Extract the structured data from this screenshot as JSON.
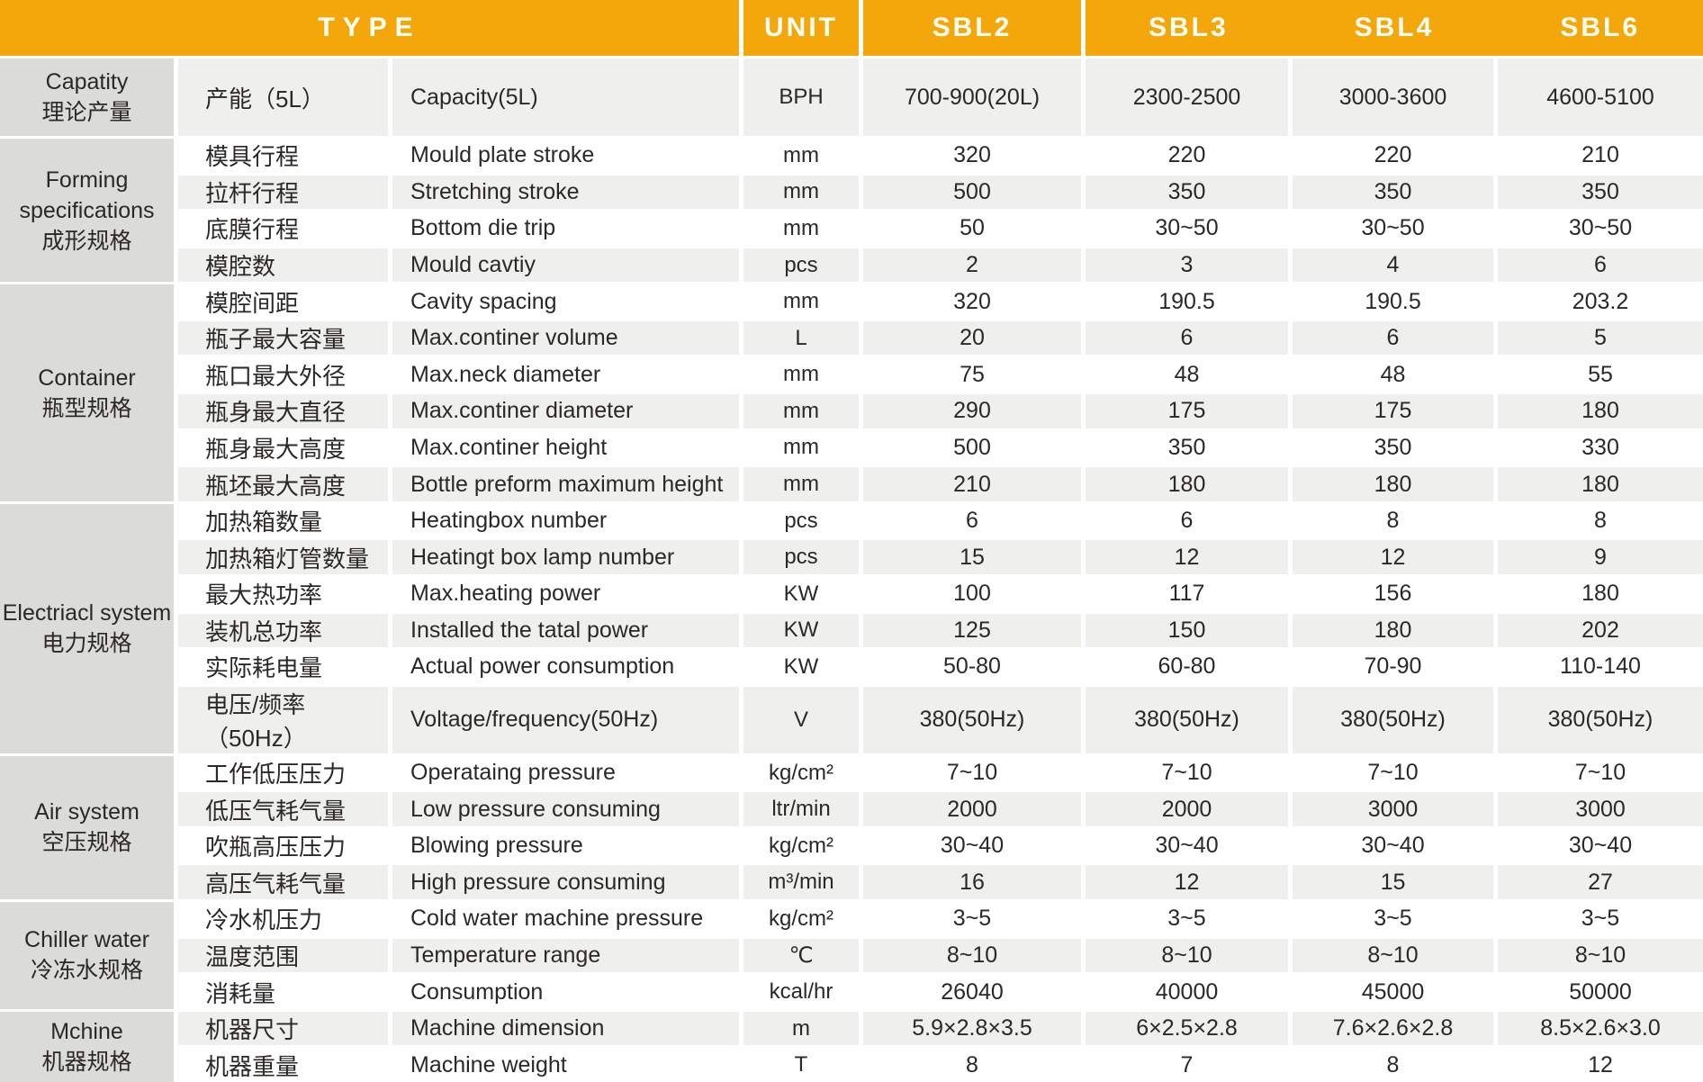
{
  "table": {
    "header": {
      "type_label": "TYPE",
      "unit_label": "UNIT",
      "models": [
        "SBL2",
        "SBL3",
        "SBL4",
        "SBL6"
      ]
    },
    "groups": [
      {
        "name_en": "Capatity",
        "name_cn": "理论产量",
        "rows": [
          {
            "cn": "产能（5L）",
            "en": "Capacity(5L)",
            "unit": "BPH",
            "values": [
              "700-900(20L)",
              "2300-2500",
              "3000-3600",
              "4600-5100"
            ]
          }
        ]
      },
      {
        "name_en": "Forming specifications",
        "name_cn": "成形规格",
        "rows": [
          {
            "cn": "模具行程",
            "en": "Mould plate stroke",
            "unit": "mm",
            "values": [
              "320",
              "220",
              "220",
              "210"
            ]
          },
          {
            "cn": "拉杆行程",
            "en": "Stretching stroke",
            "unit": "mm",
            "values": [
              "500",
              "350",
              "350",
              "350"
            ]
          },
          {
            "cn": "底膜行程",
            "en": "Bottom die trip",
            "unit": "mm",
            "values": [
              "50",
              "30~50",
              "30~50",
              "30~50"
            ]
          },
          {
            "cn": "模腔数",
            "en": "Mould cavtiy",
            "unit": "pcs",
            "values": [
              "2",
              "3",
              "4",
              "6"
            ]
          }
        ]
      },
      {
        "name_en": "Container",
        "name_cn": "瓶型规格",
        "rows": [
          {
            "cn": "模腔间距",
            "en": "Cavity spacing",
            "unit": "mm",
            "values": [
              "320",
              "190.5",
              "190.5",
              "203.2"
            ]
          },
          {
            "cn": "瓶子最大容量",
            "en": "Max.continer volume",
            "unit": "L",
            "values": [
              "20",
              "6",
              "6",
              "5"
            ]
          },
          {
            "cn": "瓶口最大外径",
            "en": "Max.neck diameter",
            "unit": "mm",
            "values": [
              "75",
              "48",
              "48",
              "55"
            ]
          },
          {
            "cn": "瓶身最大直径",
            "en": "Max.continer diameter",
            "unit": "mm",
            "values": [
              "290",
              "175",
              "175",
              "180"
            ]
          },
          {
            "cn": "瓶身最大高度",
            "en": "Max.continer height",
            "unit": "mm",
            "values": [
              "500",
              "350",
              "350",
              "330"
            ]
          },
          {
            "cn": "瓶坯最大高度",
            "en": "Bottle preform maximum height",
            "unit": "mm",
            "values": [
              "210",
              "180",
              "180",
              "180"
            ]
          }
        ]
      },
      {
        "name_en": "Electriacl system",
        "name_cn": "电力规格",
        "rows": [
          {
            "cn": "加热箱数量",
            "en": "Heatingbox number",
            "unit": "pcs",
            "values": [
              "6",
              "6",
              "8",
              "8"
            ]
          },
          {
            "cn": "加热箱灯管数量",
            "en": "Heatingt box lamp number",
            "unit": "pcs",
            "values": [
              "15",
              "12",
              "12",
              "9"
            ]
          },
          {
            "cn": "最大热功率",
            "en": "Max.heating power",
            "unit": "KW",
            "values": [
              "100",
              "117",
              "156",
              "180"
            ]
          },
          {
            "cn": "装机总功率",
            "en": "Installed the tatal power",
            "unit": "KW",
            "values": [
              "125",
              "150",
              "180",
              "202"
            ]
          },
          {
            "cn": "实际耗电量",
            "en": "Actual power consumption",
            "unit": "KW",
            "values": [
              "50-80",
              "60-80",
              "70-90",
              "110-140"
            ]
          },
          {
            "cn": "电压/频率（50Hz）",
            "en": "Voltage/frequency(50Hz)",
            "unit": "V",
            "values": [
              "380(50Hz)",
              "380(50Hz)",
              "380(50Hz)",
              "380(50Hz)"
            ]
          }
        ]
      },
      {
        "name_en": "Air system",
        "name_cn": "空压规格",
        "rows": [
          {
            "cn": "工作低压压力",
            "en": "Operataing pressure",
            "unit": "kg/cm²",
            "values": [
              "7~10",
              "7~10",
              "7~10",
              "7~10"
            ]
          },
          {
            "cn": "低压气耗气量",
            "en": "Low pressure consuming",
            "unit": "ltr/min",
            "values": [
              "2000",
              "2000",
              "3000",
              "3000"
            ]
          },
          {
            "cn": "吹瓶高压压力",
            "en": "Blowing pressure",
            "unit": "kg/cm²",
            "values": [
              "30~40",
              "30~40",
              "30~40",
              "30~40"
            ]
          },
          {
            "cn": "高压气耗气量",
            "en": "High pressure consuming",
            "unit": "m³/min",
            "values": [
              "16",
              "12",
              "15",
              "27"
            ]
          }
        ]
      },
      {
        "name_en": "Chiller water",
        "name_cn": "冷冻水规格",
        "rows": [
          {
            "cn": "冷水机压力",
            "en": "Cold water machine pressure",
            "unit": "kg/cm²",
            "values": [
              "3~5",
              "3~5",
              "3~5",
              "3~5"
            ]
          },
          {
            "cn": "温度范围",
            "en": "Temperature range",
            "unit": "℃",
            "values": [
              "8~10",
              "8~10",
              "8~10",
              "8~10"
            ]
          },
          {
            "cn": "消耗量",
            "en": "Consumption",
            "unit": "kcal/hr",
            "values": [
              "26040",
              "40000",
              "45000",
              "50000"
            ]
          }
        ]
      },
      {
        "name_en": "Mchine",
        "name_cn": "机器规格",
        "rows": [
          {
            "cn": "机器尺寸",
            "en": "Machine dimension",
            "unit": "m",
            "values": [
              "5.9×2.8×3.5",
              "6×2.5×2.8",
              "7.6×2.6×2.8",
              "8.5×2.6×3.0"
            ]
          },
          {
            "cn": "机器重量",
            "en": "Machine weight",
            "unit": "T",
            "values": [
              "8",
              "7",
              "8",
              "12"
            ]
          }
        ]
      }
    ]
  },
  "colors": {
    "header_bg": "#F3A70B",
    "group_bg": "#DBDBD9",
    "row_alt_bg": "#EFEFED",
    "text": "#2B2826",
    "header_text": "#FFFEF5"
  }
}
